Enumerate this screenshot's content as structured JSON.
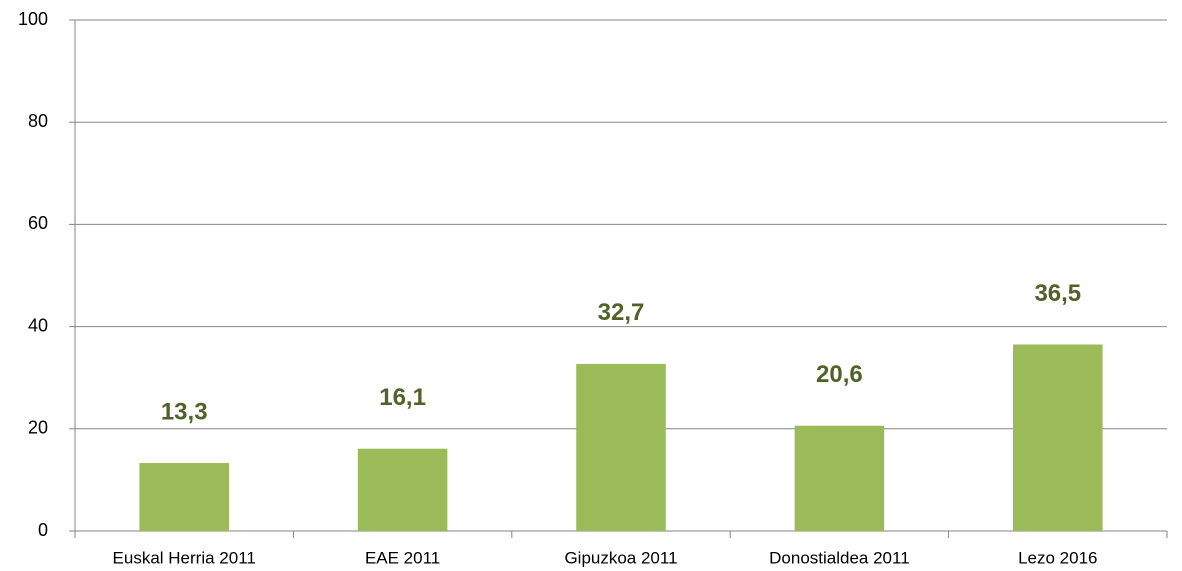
{
  "chart_data": {
    "type": "bar",
    "categories": [
      "Euskal Herria 2011",
      "EAE 2011",
      "Gipuzkoa 2011",
      "Donostialdea 2011",
      "Lezo 2016"
    ],
    "values": [
      13.3,
      16.1,
      32.7,
      20.6,
      36.5
    ],
    "value_labels": [
      "13,3",
      "16,1",
      "32,7",
      "20,6",
      "36,5"
    ],
    "color": "#9bbb59",
    "ylim": [
      0,
      100
    ],
    "yticks": [
      0,
      20,
      40,
      60,
      80,
      100
    ],
    "grid": true
  }
}
